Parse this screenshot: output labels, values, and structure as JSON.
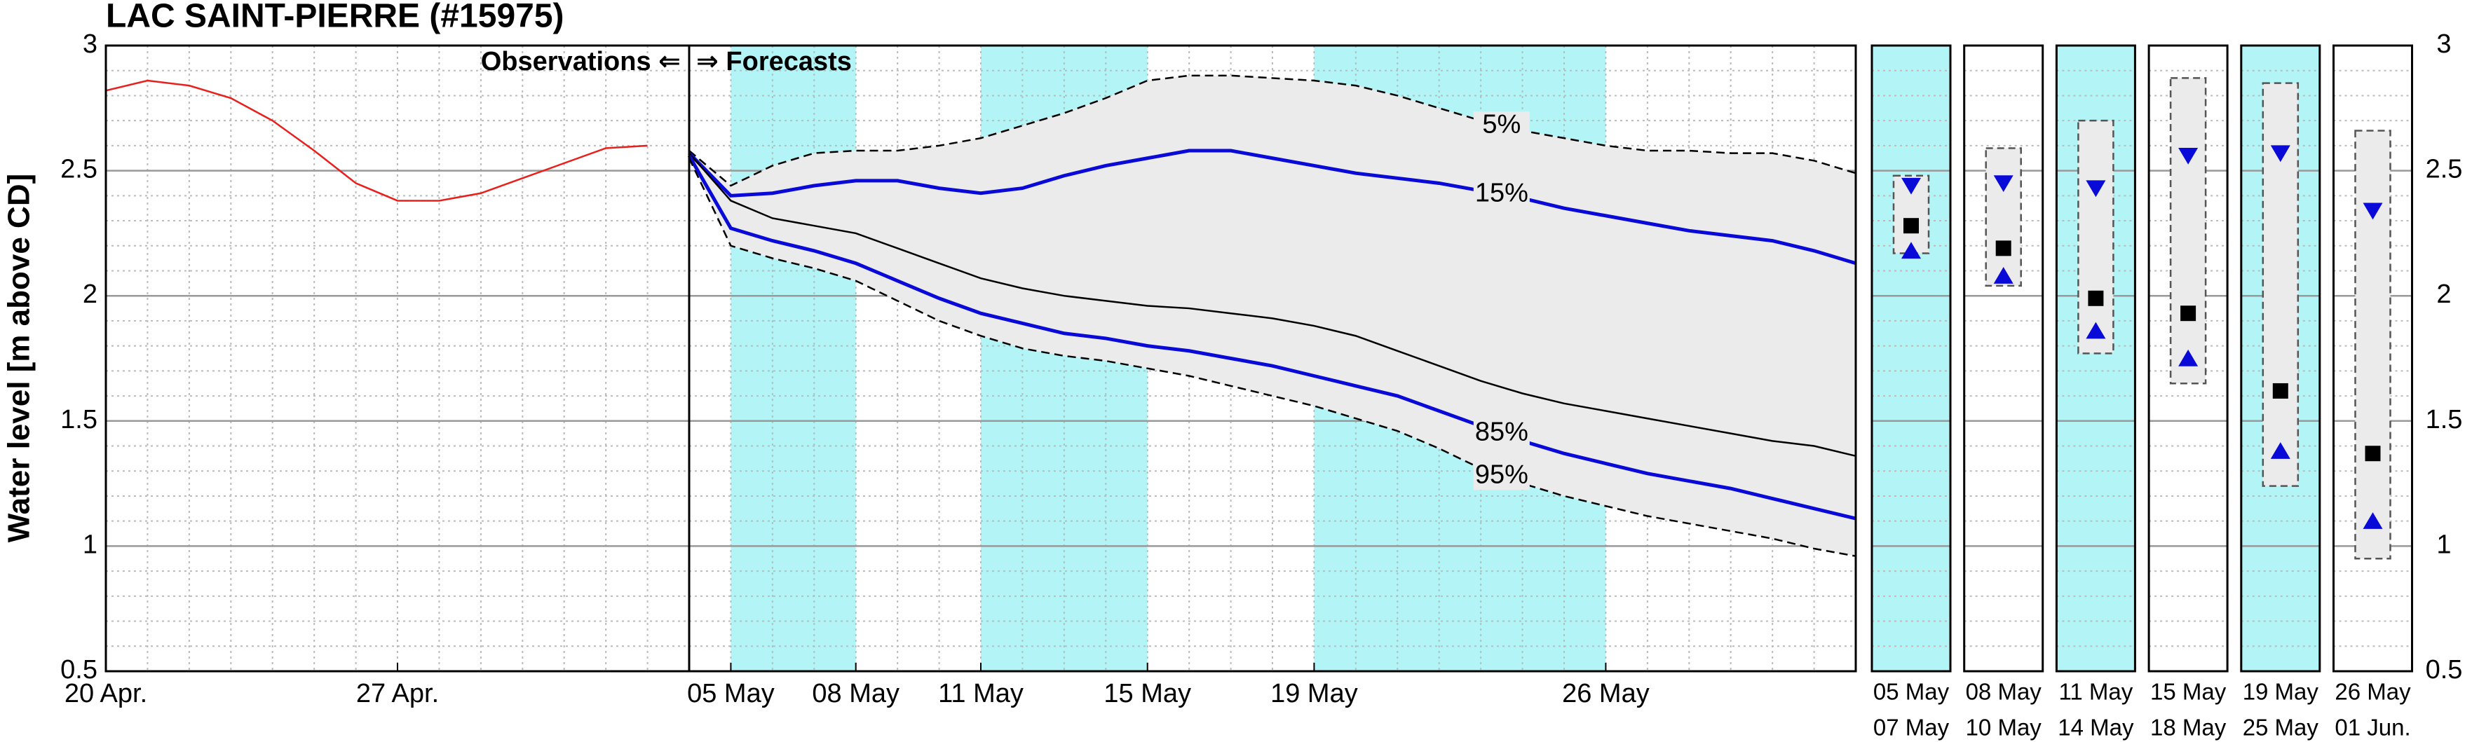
{
  "chart_data": [
    {
      "type": "line",
      "title": "LAC SAINT-PIERRE (#15975)",
      "y_label": "Water level [m above CD]",
      "annotations": [
        "Observations ⇐",
        "⇒ Forecasts"
      ],
      "forecast_start": 14,
      "xlim": [
        0,
        42
      ],
      "xticks": [
        {
          "value": 0,
          "label": "20 Apr."
        },
        {
          "value": 7,
          "label": "27 Apr."
        },
        {
          "value": 15,
          "label": "05 May"
        },
        {
          "value": 18,
          "label": "08 May"
        },
        {
          "value": 21,
          "label": "11 May"
        },
        {
          "value": 25,
          "label": "15 May"
        },
        {
          "value": 29,
          "label": "19 May"
        },
        {
          "value": 36,
          "label": "26 May"
        }
      ],
      "ylim": [
        0.5,
        3.0
      ],
      "yticks": [
        0.5,
        1.0,
        1.5,
        2.0,
        2.5,
        3.0
      ],
      "grid": true,
      "shaded": [
        [
          15,
          18
        ],
        [
          21,
          25
        ],
        [
          29,
          36
        ]
      ],
      "shade_color": "#b3f5f7",
      "band_color": "#ebebeb",
      "series": [
        {
          "color": "#e8201c",
          "x": [
            0,
            1,
            2,
            3,
            4,
            5,
            6,
            7,
            8,
            9,
            10,
            11,
            12,
            13
          ],
          "values": [
            2.82,
            2.86,
            2.84,
            2.79,
            2.7,
            2.58,
            2.45,
            2.38,
            2.38,
            2.41,
            2.47,
            2.53,
            2.59,
            2.6
          ]
        },
        {
          "name": "5%",
          "color": "#000000",
          "dash": true,
          "x": [
            14,
            15,
            16,
            17,
            18,
            19,
            20,
            21,
            22,
            23,
            24,
            25,
            26,
            27,
            28,
            29,
            30,
            31,
            32,
            33,
            34,
            35,
            36,
            37,
            38,
            39,
            40,
            41,
            42
          ],
          "values": [
            2.58,
            2.44,
            2.52,
            2.57,
            2.58,
            2.58,
            2.6,
            2.63,
            2.68,
            2.73,
            2.79,
            2.86,
            2.88,
            2.88,
            2.87,
            2.86,
            2.84,
            2.8,
            2.75,
            2.7,
            2.66,
            2.63,
            2.6,
            2.58,
            2.58,
            2.57,
            2.57,
            2.54,
            2.49
          ]
        },
        {
          "name": "15%",
          "color": "#0a0ad8",
          "x": [
            14,
            15,
            16,
            17,
            18,
            19,
            20,
            21,
            22,
            23,
            24,
            25,
            26,
            27,
            28,
            29,
            30,
            31,
            32,
            33,
            34,
            35,
            36,
            37,
            38,
            39,
            40,
            41,
            42
          ],
          "values": [
            2.57,
            2.4,
            2.41,
            2.44,
            2.46,
            2.46,
            2.43,
            2.41,
            2.43,
            2.48,
            2.52,
            2.55,
            2.58,
            2.58,
            2.55,
            2.52,
            2.49,
            2.47,
            2.45,
            2.42,
            2.39,
            2.35,
            2.32,
            2.29,
            2.26,
            2.24,
            2.22,
            2.18,
            2.13
          ]
        },
        {
          "color": "#000000",
          "x": [
            14,
            15,
            16,
            17,
            18,
            19,
            20,
            21,
            22,
            23,
            24,
            25,
            26,
            27,
            28,
            29,
            30,
            31,
            32,
            33,
            34,
            35,
            36,
            37,
            38,
            39,
            40,
            41,
            42
          ],
          "values": [
            2.57,
            2.38,
            2.31,
            2.28,
            2.25,
            2.19,
            2.13,
            2.07,
            2.03,
            2.0,
            1.98,
            1.96,
            1.95,
            1.93,
            1.91,
            1.88,
            1.84,
            1.78,
            1.72,
            1.66,
            1.61,
            1.57,
            1.54,
            1.51,
            1.48,
            1.45,
            1.42,
            1.4,
            1.36
          ]
        },
        {
          "name": "85%",
          "color": "#0a0ad8",
          "x": [
            14,
            15,
            16,
            17,
            18,
            19,
            20,
            21,
            22,
            23,
            24,
            25,
            26,
            27,
            28,
            29,
            30,
            31,
            32,
            33,
            34,
            35,
            36,
            37,
            38,
            39,
            40,
            41,
            42
          ],
          "values": [
            2.56,
            2.27,
            2.22,
            2.18,
            2.13,
            2.06,
            1.99,
            1.93,
            1.89,
            1.85,
            1.83,
            1.8,
            1.78,
            1.75,
            1.72,
            1.68,
            1.64,
            1.6,
            1.54,
            1.48,
            1.42,
            1.37,
            1.33,
            1.29,
            1.26,
            1.23,
            1.19,
            1.15,
            1.11
          ]
        },
        {
          "name": "95%",
          "color": "#000000",
          "dash": true,
          "x": [
            14,
            15,
            16,
            17,
            18,
            19,
            20,
            21,
            22,
            23,
            24,
            25,
            26,
            27,
            28,
            29,
            30,
            31,
            32,
            33,
            34,
            35,
            36,
            37,
            38,
            39,
            40,
            41,
            42
          ],
          "values": [
            2.55,
            2.2,
            2.15,
            2.11,
            2.06,
            1.98,
            1.9,
            1.84,
            1.79,
            1.76,
            1.74,
            1.71,
            1.68,
            1.64,
            1.6,
            1.56,
            1.51,
            1.46,
            1.39,
            1.31,
            1.25,
            1.2,
            1.16,
            1.12,
            1.09,
            1.06,
            1.03,
            0.99,
            0.96
          ]
        }
      ]
    },
    {
      "type": "range",
      "categories": [
        [
          "05 May",
          "07 May"
        ],
        [
          "08 May",
          "10 May"
        ],
        [
          "11 May",
          "14 May"
        ],
        [
          "15 May",
          "18 May"
        ],
        [
          "19 May",
          "25 May"
        ],
        [
          "26 May",
          "01 Jun."
        ]
      ],
      "shaded": [
        true,
        false,
        true,
        false,
        true,
        false
      ],
      "ylim": [
        0.5,
        3.0
      ],
      "yticks": [
        0.5,
        1.0,
        1.5,
        2.0,
        2.5,
        3.0
      ],
      "series": [
        {
          "marker": "box-top",
          "color": "#555555",
          "values": [
            2.48,
            2.59,
            2.7,
            2.87,
            2.85,
            2.66
          ]
        },
        {
          "marker": "box-bottom",
          "color": "#555555",
          "values": [
            2.17,
            2.04,
            1.77,
            1.65,
            1.24,
            0.95
          ]
        },
        {
          "marker": "down-triangle",
          "color": "#0a0ad8",
          "values": [
            2.44,
            2.45,
            2.43,
            2.56,
            2.57,
            2.34
          ]
        },
        {
          "marker": "square",
          "color": "#000000",
          "values": [
            2.28,
            2.19,
            1.99,
            1.93,
            1.62,
            1.37
          ]
        },
        {
          "marker": "up-triangle",
          "color": "#0a0ad8",
          "values": [
            2.18,
            2.08,
            1.86,
            1.75,
            1.38,
            1.1
          ]
        }
      ]
    }
  ]
}
